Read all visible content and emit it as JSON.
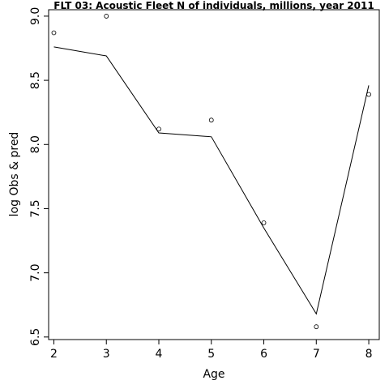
{
  "chart_data": {
    "type": "line",
    "title": "FLT 03: Acoustic Fleet  N of individuals, millions, year 2011",
    "xlabel": "Age",
    "ylabel": "log Obs & pred",
    "x": [
      2,
      3,
      4,
      5,
      6,
      7,
      8
    ],
    "xticks": [
      "2",
      "3",
      "4",
      "5",
      "6",
      "7",
      "8"
    ],
    "yticks": [
      "6.5",
      "7.0",
      "7.5",
      "8.0",
      "8.5",
      "9.0"
    ],
    "xlim": [
      1.9,
      8.2
    ],
    "ylim": [
      6.48,
      9.05
    ],
    "grid": false,
    "series": [
      {
        "role": "observed",
        "marker": "open-circle",
        "values": [
          8.87,
          9.0,
          8.12,
          8.19,
          7.39,
          6.58,
          8.39
        ]
      },
      {
        "role": "predicted",
        "marker": "line",
        "values": [
          8.76,
          8.69,
          8.09,
          8.06,
          7.35,
          6.68,
          8.46
        ]
      }
    ]
  }
}
